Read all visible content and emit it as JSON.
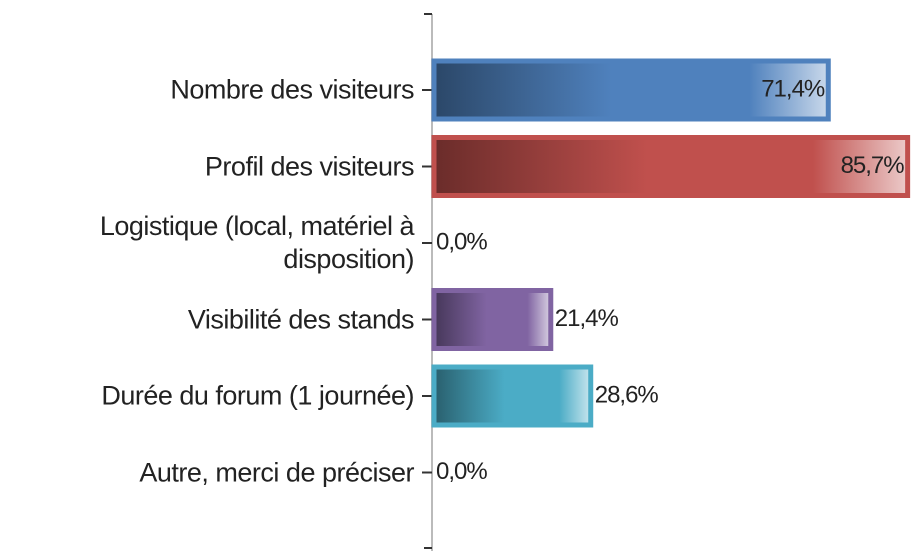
{
  "chart_data": {
    "type": "bar",
    "orientation": "horizontal",
    "categories": [
      "Nombre des visiteurs",
      "Profil des visiteurs",
      "Logistique (local, matériel à disposition)",
      "Visibilité des stands",
      "Durée du forum (1 journée)",
      "Autre, merci de préciser"
    ],
    "values": [
      71.4,
      85.7,
      0,
      21.4,
      28.6,
      0
    ],
    "value_labels": [
      "71,4%",
      "85,7%",
      "0,0%",
      "21,4%",
      "28,6%",
      "0,0%"
    ],
    "colors": [
      "#4f81bd",
      "#c0504d",
      "#8064a2",
      "#8064a2",
      "#4bacc6",
      "#4bacc6"
    ],
    "xlim": [
      0,
      100
    ]
  }
}
